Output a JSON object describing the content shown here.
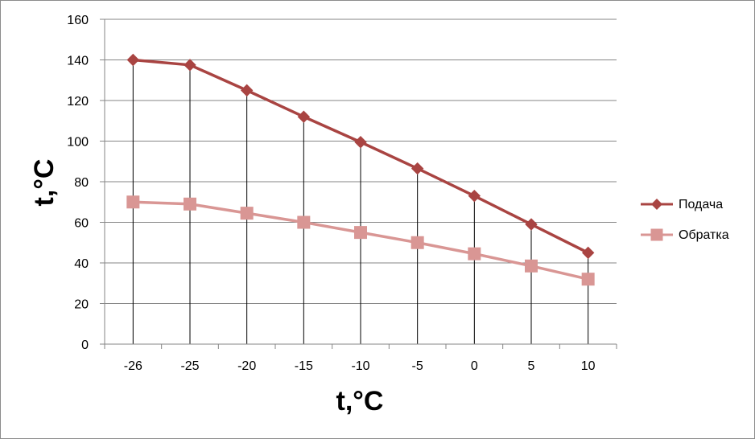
{
  "chart_data": {
    "type": "line",
    "categories": [
      "-26",
      "-25",
      "-20",
      "-15",
      "-10",
      "-5",
      "0",
      "5",
      "10"
    ],
    "series": [
      {
        "name": "Подача",
        "values": [
          140,
          137.5,
          125,
          112,
          99.5,
          86.5,
          73,
          59,
          45
        ],
        "color": "#a94442",
        "marker": "diamond"
      },
      {
        "name": "Обратка",
        "values": [
          70,
          69,
          64.5,
          60,
          55,
          50,
          44.5,
          38.5,
          32
        ],
        "color": "#d99694",
        "marker": "square"
      }
    ],
    "xlabel": "t,°C",
    "ylabel": "t,°C",
    "ylim": [
      0,
      160
    ],
    "yticks": [
      0,
      20,
      40,
      60,
      80,
      100,
      120,
      140,
      160
    ],
    "grid": "horizontal",
    "drop_lines": true,
    "legend": "right"
  }
}
